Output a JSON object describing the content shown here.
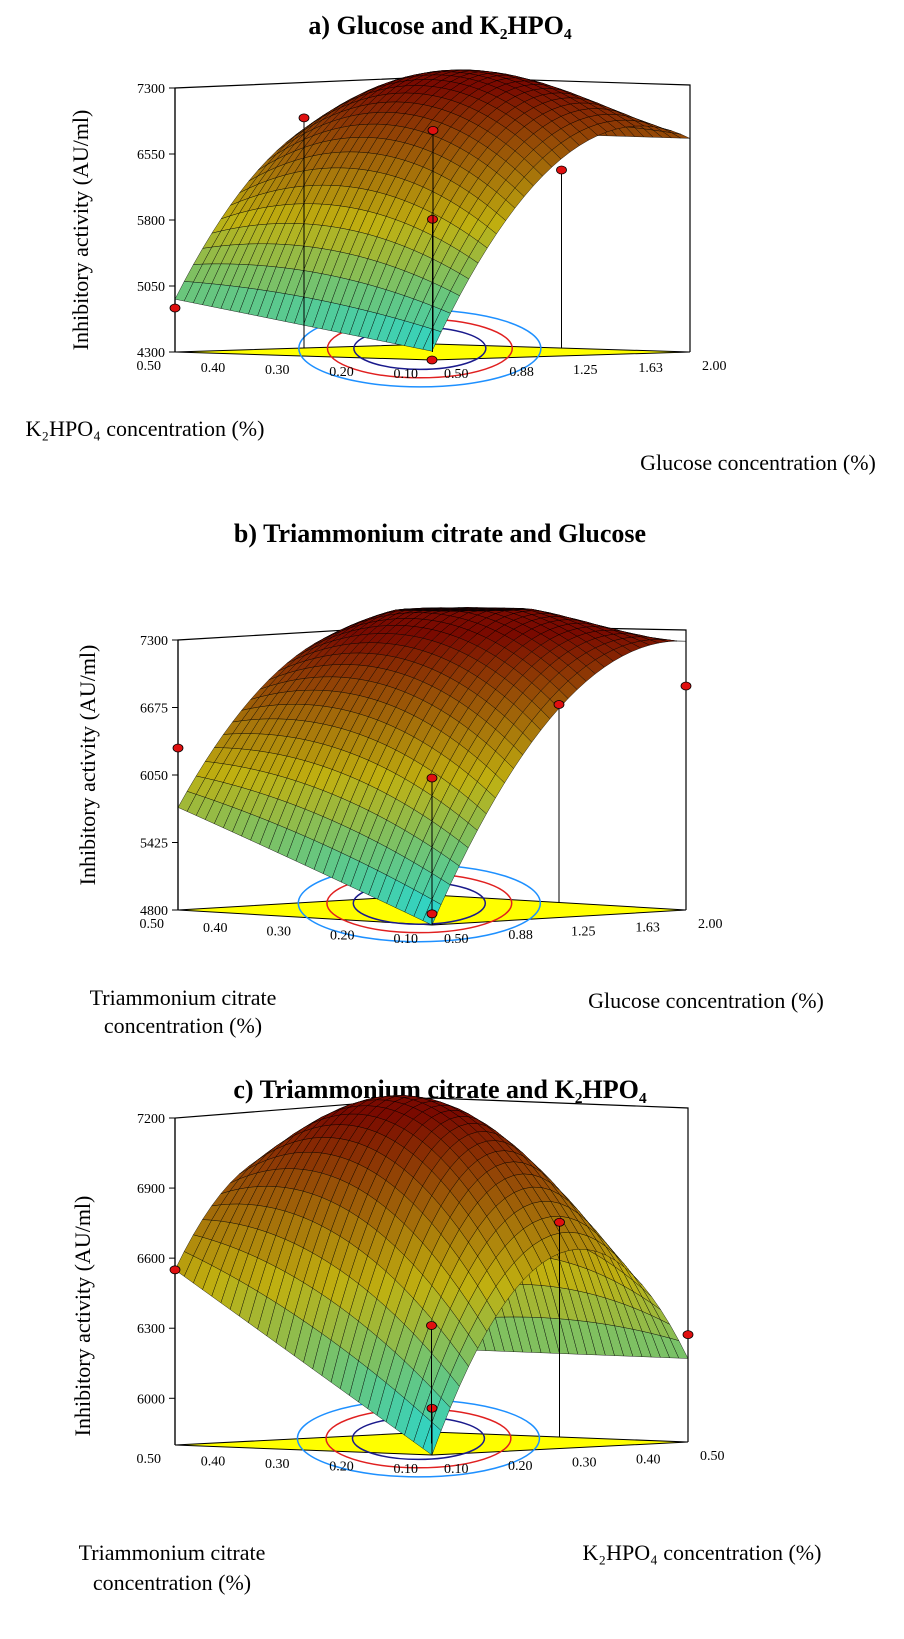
{
  "chart_data": [
    {
      "type": "surface",
      "title": "a) Glucose and K₂HPO₄",
      "xlabel": "Glucose concentration (%)",
      "ylabel": "K₂HPO₄ concentration (%)",
      "zlabel": "Inhibitory activity (AU/ml)",
      "x_ticks": [
        "0.50",
        "0.88",
        "1.25",
        "1.63",
        "2.00"
      ],
      "y_ticks": [
        "0.10",
        "0.20",
        "0.30",
        "0.40",
        "0.50"
      ],
      "z_ticks": [
        "4300",
        "5050",
        "5800",
        "6550",
        "7300"
      ],
      "xlim": [
        0.5,
        2.0
      ],
      "ylim": [
        0.1,
        0.5
      ],
      "zlim": [
        4300,
        7300
      ],
      "corner_values": {
        "x_low_y_low": 4400,
        "x_low_y_high": 4900,
        "x_high_y_low": 6700,
        "x_high_y_high": 6700
      },
      "max_value": 7300,
      "design_points": [
        {
          "x": 0.5,
          "y": 0.1,
          "z": 4300
        },
        {
          "x": 0.5,
          "y": 0.5,
          "z": 4800
        },
        {
          "x": 1.25,
          "y": 0.5,
          "z": 6900
        },
        {
          "x": 1.25,
          "y": 0.3,
          "z": 5800
        },
        {
          "x": 2.0,
          "y": 0.3,
          "z": 6300
        },
        {
          "x": 2.0,
          "y": 0.5,
          "z": 6700
        }
      ],
      "colors": {
        "low": "#20d8d8",
        "mid": "#c0b010",
        "high": "#7a0a00",
        "floor": "#ffff00"
      }
    },
    {
      "type": "surface",
      "title": "b) Triammonium citrate and Glucose",
      "xlabel": "Glucose concentration (%)",
      "ylabel_lines": [
        "Triammonium citrate",
        "concentration (%)"
      ],
      "zlabel": "Inhibitory activity (AU/ml)",
      "x_ticks": [
        "0.50",
        "0.88",
        "1.25",
        "1.63",
        "2.00"
      ],
      "y_ticks": [
        "0.10",
        "0.20",
        "0.30",
        "0.40",
        "0.50"
      ],
      "z_ticks": [
        "4800",
        "5425",
        "6050",
        "6675",
        "7300"
      ],
      "xlim": [
        0.5,
        2.0
      ],
      "ylim": [
        0.1,
        0.5
      ],
      "zlim": [
        4800,
        7300
      ],
      "corner_values": {
        "x_low_y_low": 4800,
        "x_low_y_high": 5750,
        "x_high_y_low": 7200,
        "x_high_y_high": 7200
      },
      "max_value": 7350,
      "design_points": [
        {
          "x": 0.5,
          "y": 0.1,
          "z": 4900
        },
        {
          "x": 0.5,
          "y": 0.5,
          "z": 6300
        },
        {
          "x": 1.25,
          "y": 0.3,
          "z": 6000
        },
        {
          "x": 2.0,
          "y": 0.3,
          "z": 6600
        },
        {
          "x": 2.0,
          "y": 0.1,
          "z": 6800
        }
      ],
      "colors": {
        "low": "#20d8d8",
        "mid": "#c0b010",
        "high": "#7a0a00",
        "floor": "#ffff00"
      }
    },
    {
      "type": "surface",
      "title": "c) Triammonium citrate and K₂HPO₄",
      "xlabel": "K₂HPO₄ concentration (%)",
      "ylabel_lines": [
        "Triammonium citrate",
        "concentration (%)"
      ],
      "zlabel": "Inhibitory activity (AU/ml)",
      "x_ticks": [
        "0.10",
        "0.20",
        "0.30",
        "0.40",
        "0.50"
      ],
      "y_ticks": [
        "0.10",
        "0.20",
        "0.30",
        "0.40",
        "0.50"
      ],
      "z_ticks": [
        "6000",
        "6300",
        "6600",
        "6900",
        "7200"
      ],
      "xlim": [
        0.1,
        0.5
      ],
      "ylim": [
        0.1,
        0.5
      ],
      "zlim": [
        5800,
        7200
      ],
      "corner_values": {
        "x_low_y_low": 5800,
        "x_low_y_high": 6550,
        "x_high_y_low": 6150,
        "x_high_y_high": 6150
      },
      "max_value": 7250,
      "design_points": [
        {
          "x": 0.1,
          "y": 0.1,
          "z": 6000
        },
        {
          "x": 0.1,
          "y": 0.5,
          "z": 6550
        },
        {
          "x": 0.3,
          "y": 0.3,
          "z": 6300
        },
        {
          "x": 0.5,
          "y": 0.3,
          "z": 6700
        },
        {
          "x": 0.5,
          "y": 0.1,
          "z": 6250
        }
      ],
      "colors": {
        "low": "#20d8d8",
        "mid": "#c0b010",
        "high": "#7a0a00",
        "floor": "#ffff00"
      }
    }
  ]
}
